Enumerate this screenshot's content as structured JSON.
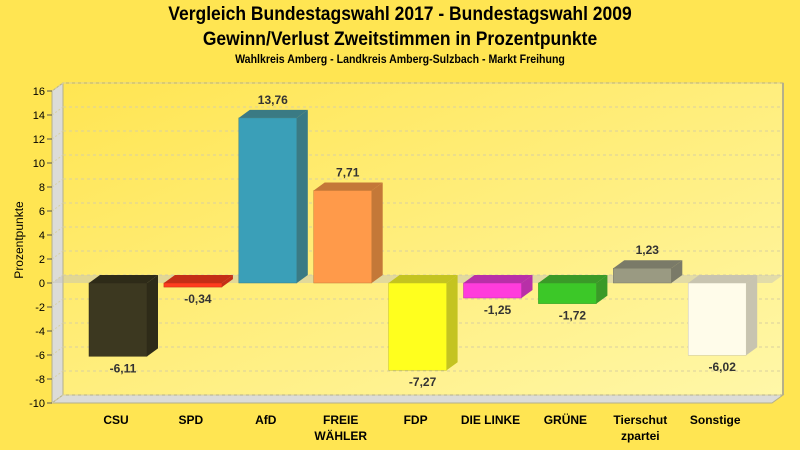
{
  "chart_data": {
    "type": "bar",
    "title": "Vergleich Bundestagswahl 2017 - Bundestagswahl 2009",
    "subtitle": "Gewinn/Verlust Zweitstimmen in Prozentpunkte",
    "subtitle2": "Wahlkreis Amberg - Landkreis Amberg-Sulzbach - Markt Freihung",
    "xlabel": "",
    "ylabel": "Prozentpunkte",
    "ylim": [
      -10,
      16
    ],
    "yticks": [
      "16",
      "14",
      "12",
      "10",
      "8",
      "6",
      "4",
      "2",
      "0",
      "-2",
      "-4",
      "-6",
      "-8",
      "-10"
    ],
    "ytick_values": [
      16,
      14,
      12,
      10,
      8,
      6,
      4,
      2,
      0,
      -2,
      -4,
      -6,
      -8,
      -10
    ],
    "grid": true,
    "categories": [
      {
        "line1": "CSU",
        "line2": ""
      },
      {
        "line1": "SPD",
        "line2": ""
      },
      {
        "line1": "AfD",
        "line2": ""
      },
      {
        "line1": "FREIE",
        "line2": "WÄHLER"
      },
      {
        "line1": "FDP",
        "line2": ""
      },
      {
        "line1": "DIE LINKE",
        "line2": ""
      },
      {
        "line1": "GRÜNE",
        "line2": ""
      },
      {
        "line1": "Tierschut",
        "line2": "zpartei"
      },
      {
        "line1": "Sonstige",
        "line2": ""
      }
    ],
    "values": [
      -6.11,
      -0.34,
      13.76,
      7.71,
      -7.27,
      -1.25,
      -1.72,
      1.23,
      -6.02
    ],
    "value_labels": [
      "-6,11",
      "-0,34",
      "13,76",
      "7,71",
      "-7,27",
      "-1,25",
      "-1,72",
      "1,23",
      "-6,02"
    ],
    "colors": [
      "#3c3820",
      "#ff3c1e",
      "#3a9fb8",
      "#ff9a4a",
      "#ffff1e",
      "#ff3cdc",
      "#3cc828",
      "#9a9a82",
      "#fffcea"
    ],
    "side_colors": [
      "#2e2b18",
      "#c42e16",
      "#3a7a84",
      "#c47838",
      "#c4c420",
      "#b830a8",
      "#3a9a28",
      "#7a7a68",
      "#c8c4b0"
    ]
  }
}
